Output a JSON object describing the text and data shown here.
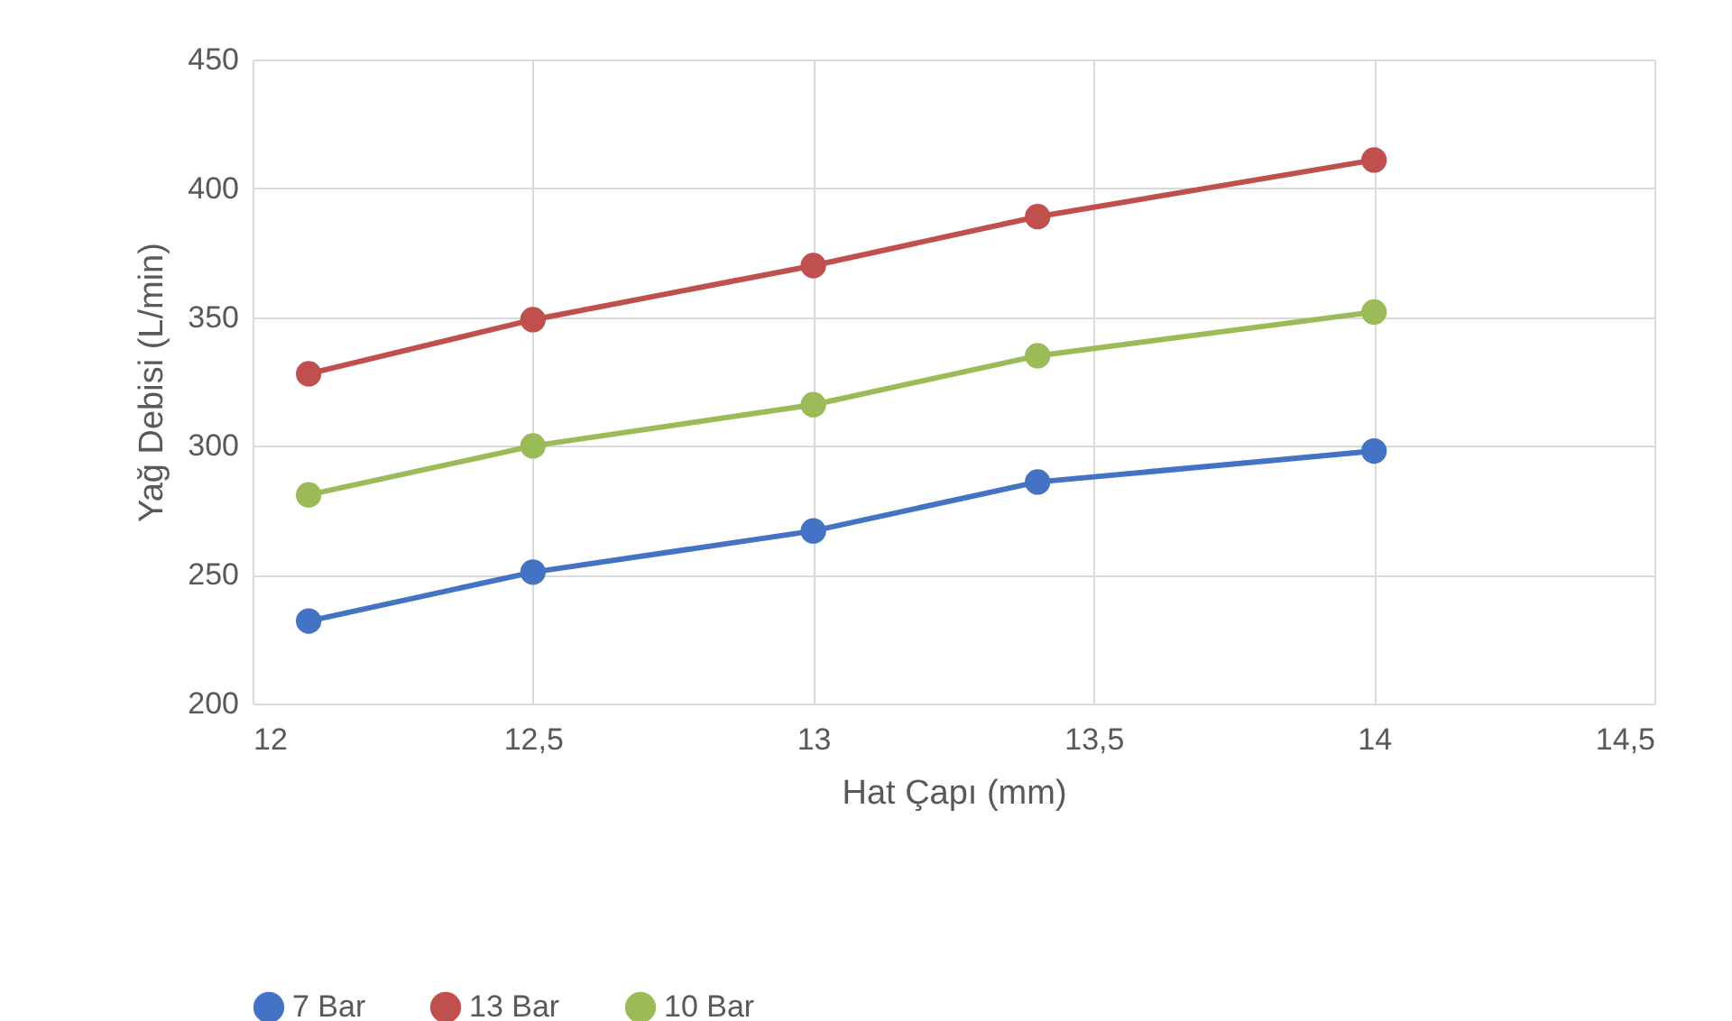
{
  "chart_data": {
    "type": "line",
    "xlabel": "Hat Çapı (mm)",
    "ylabel": "Yağ Debisi (L/min)",
    "x": [
      12.1,
      12.5,
      13,
      13.4,
      14
    ],
    "series": [
      {
        "name": "7 Bar",
        "color": "#4472c4",
        "values": [
          232,
          251,
          267,
          286,
          298
        ]
      },
      {
        "name": "13 Bar",
        "color": "#c0504d",
        "values": [
          328,
          349,
          370,
          389,
          411
        ]
      },
      {
        "name": "10 Bar",
        "color": "#9bbb59",
        "values": [
          281,
          300,
          316,
          335,
          352
        ]
      }
    ],
    "xlim": [
      12,
      14.5
    ],
    "xticks": [
      12,
      {
        "value": 12.5,
        "label": "12,5"
      },
      13,
      {
        "value": 13.5,
        "label": "13,5"
      },
      14,
      {
        "value": 14.5,
        "label": "14,5"
      }
    ],
    "ylim": [
      200,
      450
    ],
    "yticks": [
      200,
      250,
      300,
      350,
      400,
      450
    ],
    "grid": true,
    "legend": "bottom",
    "marker": "circle",
    "line_style": "solid"
  }
}
